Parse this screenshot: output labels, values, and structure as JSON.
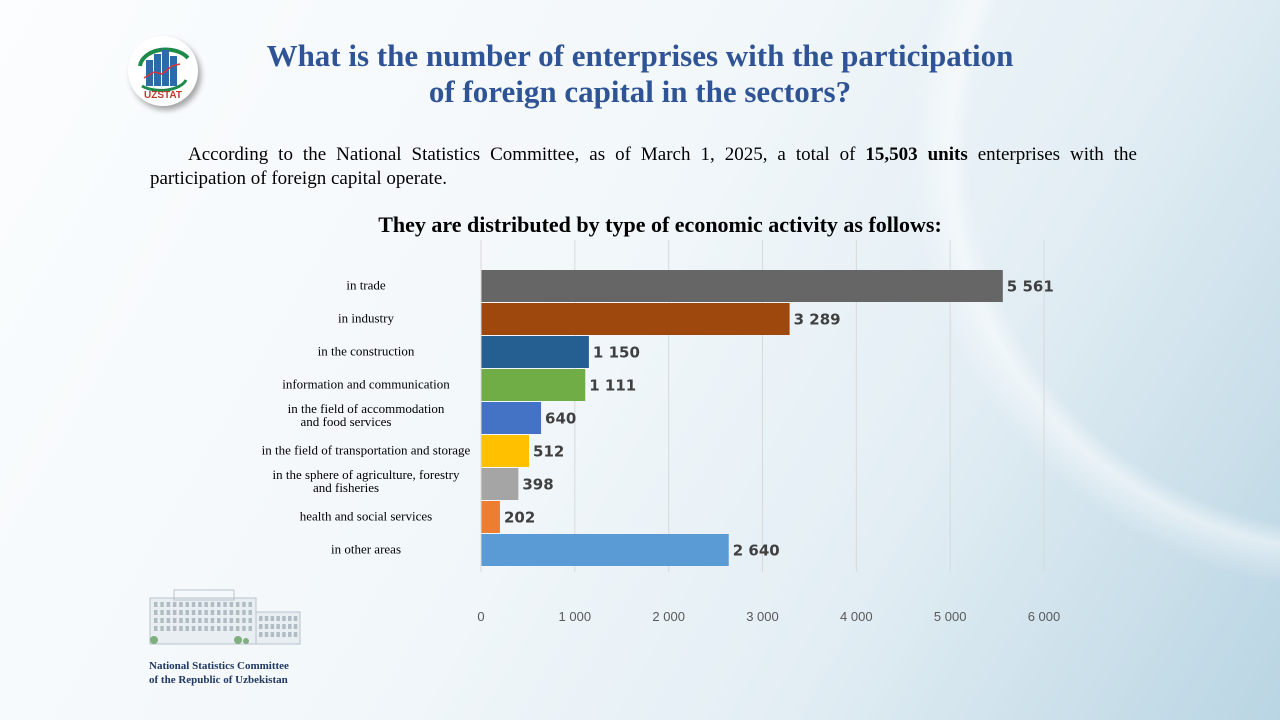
{
  "title": "What is the number of enterprises with the participation of foreign capital in the sectors?",
  "title_lines": [
    "What is the number of enterprises with the participation",
    "of foreign capital in the sectors?"
  ],
  "intro": {
    "before": "According to the National Statistics Committee, as of March 1, 2025, a total of ",
    "bold": "15,503 units",
    "after": " enterprises with the participation  of foreign capital operate."
  },
  "subtitle": "They are distributed by type of economic activity as follows:",
  "logo_text": "UZSTAT",
  "footer": [
    "National Statistics Committee",
    "of the Republic of Uzbekistan"
  ],
  "chart_data": {
    "type": "bar",
    "orientation": "horizontal",
    "categories": [
      [
        "in trade"
      ],
      [
        "in industry"
      ],
      [
        "in the construction"
      ],
      [
        "information and communication"
      ],
      [
        "in the field of accommodation",
        "and food services"
      ],
      [
        "in the field of transportation and storage"
      ],
      [
        "in the sphere of agriculture, forestry",
        "and fisheries"
      ],
      [
        "health and social services"
      ],
      [
        "in other areas"
      ]
    ],
    "values": [
      5561,
      3289,
      1150,
      1111,
      640,
      512,
      398,
      202,
      2640
    ],
    "data_labels": [
      "5 561",
      "3 289",
      "1 150",
      "1 111",
      "640",
      "512",
      "398",
      "202",
      "2 640"
    ],
    "colors": [
      "#666666",
      "#9E480E",
      "#255E91",
      "#70AD47",
      "#4472C4",
      "#FFC000",
      "#A5A5A5",
      "#ED7D31",
      "#5B9BD5"
    ],
    "xlim": [
      0,
      6000
    ],
    "xticks": [
      0,
      1000,
      2000,
      3000,
      4000,
      5000,
      6000
    ],
    "xtick_labels": [
      "0",
      "1 000",
      "2 000",
      "3 000",
      "4 000",
      "5 000",
      "6 000"
    ],
    "grid": true
  }
}
